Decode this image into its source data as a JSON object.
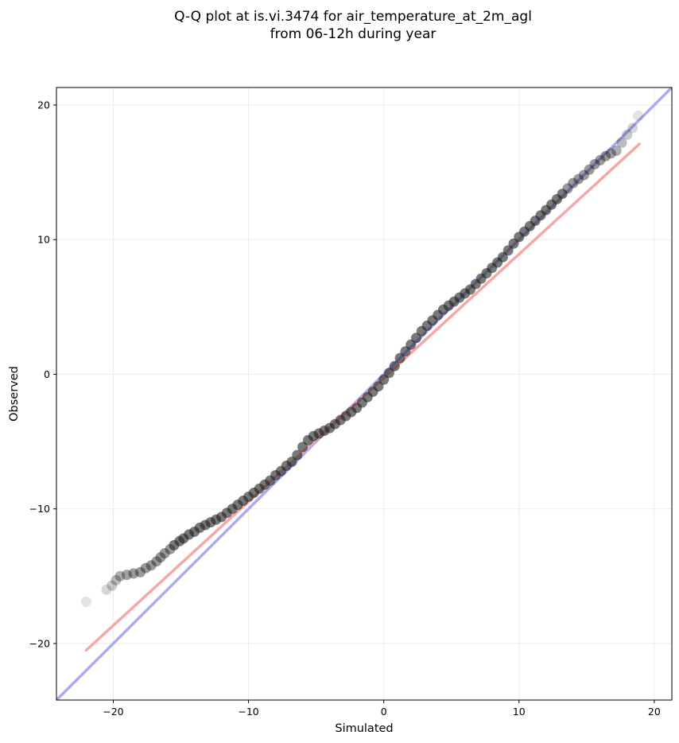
{
  "chart_data": {
    "type": "scatter",
    "title": "Q-Q plot at is.vi.3474 for air_temperature_at_2m_agl",
    "subtitle": "from 06-12h during year",
    "xlabel": "Simulated",
    "ylabel": "Observed",
    "xlim": [
      -24.2,
      21.3
    ],
    "ylim": [
      -24.2,
      21.3
    ],
    "xticks": [
      -20,
      -10,
      0,
      10,
      20
    ],
    "yticks": [
      -20,
      -10,
      0,
      10,
      20
    ],
    "xtick_labels": [
      "−20",
      "−10",
      "0",
      "10",
      "20"
    ],
    "ytick_labels": [
      "−20",
      "−10",
      "0",
      "10",
      "20"
    ],
    "grid": true,
    "legend": "none",
    "reference_line": {
      "color": "#a9acf2",
      "x": [
        -24.2,
        21.3
      ],
      "y": [
        -24.2,
        21.3
      ]
    },
    "fit_line": {
      "color": "#f6a7a7",
      "x": [
        -22.0,
        18.9
      ],
      "y": [
        -20.5,
        17.1
      ]
    },
    "points_color": "#1f1f1f",
    "points": {
      "x": [
        -22.0,
        -20.5,
        -20.1,
        -19.8,
        -19.5,
        -19.0,
        -18.5,
        -18.0,
        -17.6,
        -17.2,
        -16.8,
        -16.5,
        -16.2,
        -15.8,
        -15.5,
        -15.1,
        -14.8,
        -14.4,
        -14.0,
        -13.6,
        -13.2,
        -12.8,
        -12.4,
        -12.0,
        -11.6,
        -11.2,
        -10.8,
        -10.4,
        -10.0,
        -9.6,
        -9.2,
        -8.8,
        -8.4,
        -8.0,
        -7.6,
        -7.2,
        -6.8,
        -6.4,
        -6.0,
        -5.6,
        -5.2,
        -4.8,
        -4.4,
        -4.0,
        -3.6,
        -3.2,
        -2.8,
        -2.4,
        -2.0,
        -1.6,
        -1.2,
        -0.8,
        -0.4,
        0.0,
        0.4,
        0.8,
        1.2,
        1.6,
        2.0,
        2.4,
        2.8,
        3.2,
        3.6,
        4.0,
        4.4,
        4.8,
        5.2,
        5.6,
        6.0,
        6.4,
        6.8,
        7.2,
        7.6,
        8.0,
        8.4,
        8.8,
        9.2,
        9.6,
        10.0,
        10.4,
        10.8,
        11.2,
        11.6,
        12.0,
        12.4,
        12.8,
        13.2,
        13.6,
        14.0,
        14.4,
        14.8,
        15.2,
        15.6,
        16.0,
        16.4,
        16.8,
        17.2,
        17.6,
        18.0,
        18.4,
        18.8
      ],
      "y": [
        -16.9,
        -16.0,
        -15.7,
        -15.3,
        -15.0,
        -14.9,
        -14.8,
        -14.7,
        -14.4,
        -14.2,
        -13.9,
        -13.6,
        -13.3,
        -13.0,
        -12.7,
        -12.4,
        -12.2,
        -11.9,
        -11.7,
        -11.4,
        -11.2,
        -11.0,
        -10.8,
        -10.6,
        -10.3,
        -10.0,
        -9.7,
        -9.4,
        -9.1,
        -8.8,
        -8.5,
        -8.2,
        -7.9,
        -7.5,
        -7.2,
        -6.8,
        -6.5,
        -6.0,
        -5.4,
        -4.9,
        -4.6,
        -4.4,
        -4.2,
        -4.0,
        -3.7,
        -3.4,
        -3.1,
        -2.8,
        -2.5,
        -2.1,
        -1.7,
        -1.3,
        -0.9,
        -0.4,
        0.1,
        0.6,
        1.2,
        1.7,
        2.2,
        2.7,
        3.2,
        3.6,
        4.0,
        4.4,
        4.8,
        5.1,
        5.4,
        5.7,
        6.0,
        6.3,
        6.7,
        7.1,
        7.5,
        7.9,
        8.3,
        8.7,
        9.2,
        9.7,
        10.2,
        10.6,
        11.0,
        11.4,
        11.8,
        12.2,
        12.6,
        13.0,
        13.4,
        13.8,
        14.2,
        14.5,
        14.8,
        15.2,
        15.6,
        15.9,
        16.2,
        16.4,
        16.6,
        17.2,
        17.8,
        18.3,
        19.2
      ]
    }
  }
}
